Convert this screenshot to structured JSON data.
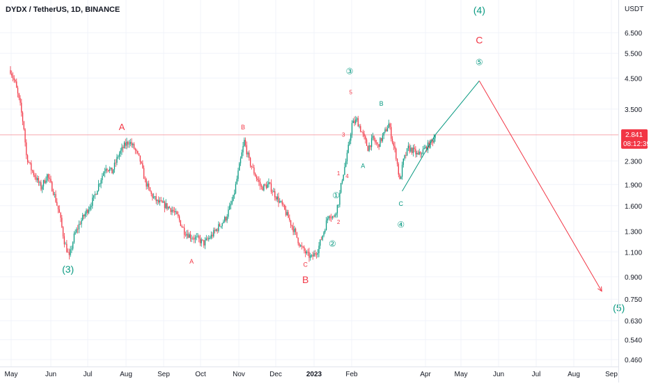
{
  "header": {
    "symbol_line": "DYDX / TetherUS, 1D, BINANCE"
  },
  "chart_data": {
    "type": "candlestick",
    "price_scale": "log",
    "currency_label": "USDT",
    "y_ticks": [
      "6.500",
      "5.500",
      "4.500",
      "3.500",
      "2.300",
      "1.900",
      "1.600",
      "1.300",
      "1.100",
      "0.900",
      "0.750",
      "0.630",
      "0.540",
      "0.460"
    ],
    "x_ticks": [
      "May",
      "Jun",
      "Jul",
      "Aug",
      "Sep",
      "Oct",
      "Nov",
      "Dec",
      "2023",
      "Feb",
      "Apr",
      "May",
      "Jun",
      "Jul",
      "Aug",
      "Sep"
    ],
    "last_price": {
      "value": "2.841",
      "countdown": "08:12:39",
      "color": "#f23645"
    },
    "colors": {
      "up": "#089981",
      "down": "#f23645",
      "wave_green": "#089981",
      "wave_red": "#f23645"
    },
    "candle_path": [
      [
        "2022-05-01",
        4.8
      ],
      [
        "2022-05-05",
        4.3
      ],
      [
        "2022-05-09",
        3.6
      ],
      [
        "2022-05-12",
        3.0
      ],
      [
        "2022-05-14",
        2.4
      ],
      [
        "2022-05-18",
        2.15
      ],
      [
        "2022-05-22",
        2.0
      ],
      [
        "2022-05-26",
        1.85
      ],
      [
        "2022-05-31",
        2.05
      ],
      [
        "2022-06-05",
        1.8
      ],
      [
        "2022-06-10",
        1.5
      ],
      [
        "2022-06-14",
        1.2
      ],
      [
        "2022-06-18",
        1.05
      ],
      [
        "2022-06-22",
        1.25
      ],
      [
        "2022-06-27",
        1.4
      ],
      [
        "2022-07-03",
        1.55
      ],
      [
        "2022-07-08",
        1.7
      ],
      [
        "2022-07-13",
        1.95
      ],
      [
        "2022-07-18",
        2.2
      ],
      [
        "2022-07-23",
        2.1
      ],
      [
        "2022-07-28",
        2.4
      ],
      [
        "2022-08-02",
        2.6
      ],
      [
        "2022-08-06",
        2.7
      ],
      [
        "2022-08-10",
        2.55
      ],
      [
        "2022-08-15",
        2.3
      ],
      [
        "2022-08-19",
        1.95
      ],
      [
        "2022-08-24",
        1.75
      ],
      [
        "2022-08-29",
        1.65
      ],
      [
        "2022-09-05",
        1.6
      ],
      [
        "2022-09-10",
        1.55
      ],
      [
        "2022-09-15",
        1.45
      ],
      [
        "2022-09-20",
        1.3
      ],
      [
        "2022-09-25",
        1.25
      ],
      [
        "2022-10-01",
        1.22
      ],
      [
        "2022-10-06",
        1.18
      ],
      [
        "2022-10-12",
        1.25
      ],
      [
        "2022-10-18",
        1.35
      ],
      [
        "2022-10-24",
        1.45
      ],
      [
        "2022-10-30",
        1.7
      ],
      [
        "2022-11-04",
        2.2
      ],
      [
        "2022-11-08",
        2.7
      ],
      [
        "2022-11-12",
        2.3
      ],
      [
        "2022-11-17",
        2.05
      ],
      [
        "2022-11-22",
        1.85
      ],
      [
        "2022-11-28",
        1.9
      ],
      [
        "2022-12-03",
        1.75
      ],
      [
        "2022-12-09",
        1.6
      ],
      [
        "2022-12-14",
        1.45
      ],
      [
        "2022-12-19",
        1.3
      ],
      [
        "2022-12-24",
        1.15
      ],
      [
        "2022-12-29",
        1.08
      ],
      [
        "2023-01-02",
        1.05
      ],
      [
        "2023-01-07",
        1.12
      ],
      [
        "2023-01-12",
        1.3
      ],
      [
        "2023-01-16",
        1.5
      ],
      [
        "2023-01-20",
        1.45
      ],
      [
        "2023-01-24",
        1.65
      ],
      [
        "2023-01-27",
        2.0
      ],
      [
        "2023-01-31",
        2.4
      ],
      [
        "2023-02-04",
        3.1
      ],
      [
        "2023-02-08",
        3.2
      ],
      [
        "2023-02-12",
        2.9
      ],
      [
        "2023-02-17",
        2.55
      ],
      [
        "2023-02-21",
        2.75
      ],
      [
        "2023-02-25",
        2.6
      ],
      [
        "2023-03-02",
        2.85
      ],
      [
        "2023-03-06",
        3.1
      ],
      [
        "2023-03-09",
        2.7
      ],
      [
        "2023-03-12",
        2.4
      ],
      [
        "2023-03-15",
        1.95
      ],
      [
        "2023-03-18",
        2.3
      ],
      [
        "2023-03-22",
        2.55
      ],
      [
        "2023-03-26",
        2.5
      ],
      [
        "2023-03-30",
        2.4
      ],
      [
        "2023-04-03",
        2.5
      ],
      [
        "2023-04-07",
        2.6
      ],
      [
        "2023-04-11",
        2.72
      ],
      [
        "2023-04-13",
        2.84
      ]
    ],
    "horizontal_line": {
      "price": 2.841
    },
    "trend_lines": [
      {
        "color": "#089981",
        "points": [
          [
            "2023-03-17",
            1.8
          ],
          [
            "2023-04-13",
            2.84
          ],
          [
            "2023-05-19",
            4.4
          ]
        ]
      },
      {
        "color": "#f23645",
        "points": [
          [
            "2023-05-19",
            4.4
          ],
          [
            "2023-08-27",
            0.8
          ]
        ]
      }
    ],
    "wave_labels": [
      {
        "text": "(3)",
        "date": "2022-06-17",
        "price": 0.93,
        "color": "#089981",
        "size": 14
      },
      {
        "text": "A",
        "date": "2022-07-31",
        "price": 2.95,
        "color": "#f23645",
        "size": 13
      },
      {
        "text": "A",
        "date": "2022-09-26",
        "price": 1.0,
        "color": "#f23645",
        "size": 9
      },
      {
        "text": "B",
        "date": "2022-11-07",
        "price": 2.97,
        "color": "#f23645",
        "size": 9
      },
      {
        "text": "C",
        "date": "2022-12-28",
        "price": 0.975,
        "color": "#f23645",
        "size": 9
      },
      {
        "text": "B",
        "date": "2022-12-28",
        "price": 0.855,
        "color": "#f23645",
        "size": 14
      },
      {
        "text": "①",
        "date": "2023-01-22",
        "price": 1.7,
        "color": "#089981",
        "size": 12
      },
      {
        "text": "②",
        "date": "2023-01-19",
        "price": 1.15,
        "color": "#089981",
        "size": 12
      },
      {
        "text": "1",
        "date": "2023-01-24",
        "price": 2.05,
        "color": "#f23645",
        "size": 8
      },
      {
        "text": "2",
        "date": "2023-01-24",
        "price": 1.38,
        "color": "#f23645",
        "size": 8
      },
      {
        "text": "3",
        "date": "2023-01-28",
        "price": 2.8,
        "color": "#f23645",
        "size": 8
      },
      {
        "text": "4",
        "date": "2023-01-31",
        "price": 2.0,
        "color": "#f23645",
        "size": 8
      },
      {
        "text": "5",
        "date": "2023-02-03",
        "price": 3.95,
        "color": "#f23645",
        "size": 8
      },
      {
        "text": "③",
        "date": "2023-02-02",
        "price": 4.65,
        "color": "#089981",
        "size": 12
      },
      {
        "text": "A",
        "date": "2023-02-13",
        "price": 2.17,
        "color": "#089981",
        "size": 9
      },
      {
        "text": "B",
        "date": "2023-02-28",
        "price": 3.6,
        "color": "#089981",
        "size": 9
      },
      {
        "text": "C",
        "date": "2023-03-16",
        "price": 1.6,
        "color": "#089981",
        "size": 9
      },
      {
        "text": "④",
        "date": "2023-03-16",
        "price": 1.34,
        "color": "#089981",
        "size": 12
      },
      {
        "text": "⑤",
        "date": "2023-05-19",
        "price": 5.0,
        "color": "#089981",
        "size": 12
      },
      {
        "text": "C",
        "date": "2023-05-19",
        "price": 5.95,
        "color": "#f23645",
        "size": 14
      },
      {
        "text": "(4)",
        "date": "2023-05-19",
        "price": 7.6,
        "color": "#089981",
        "size": 14
      },
      {
        "text": "(5)",
        "date": "2023-09-10",
        "price": 0.68,
        "color": "#089981",
        "size": 14
      }
    ]
  }
}
